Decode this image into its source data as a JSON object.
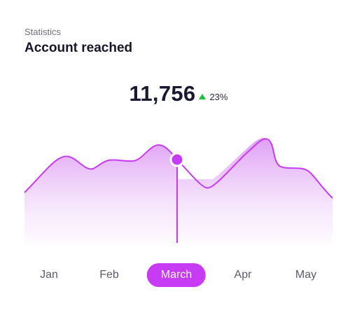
{
  "header": {
    "subtitle": "Statistics",
    "title": "Account reached"
  },
  "summary": {
    "value": "11,756",
    "delta": "23%",
    "delta_direction": "up",
    "delta_color": "#1fbf3d"
  },
  "months": [
    {
      "label": "Jan",
      "active": false
    },
    {
      "label": "Feb",
      "active": false
    },
    {
      "label": "March",
      "active": true
    },
    {
      "label": "Apr",
      "active": false
    },
    {
      "label": "May",
      "active": false
    }
  ],
  "colors": {
    "accent": "#c83bf5",
    "fill_top": "#dd9af5",
    "fill_bottom": "#ffffff"
  }
}
